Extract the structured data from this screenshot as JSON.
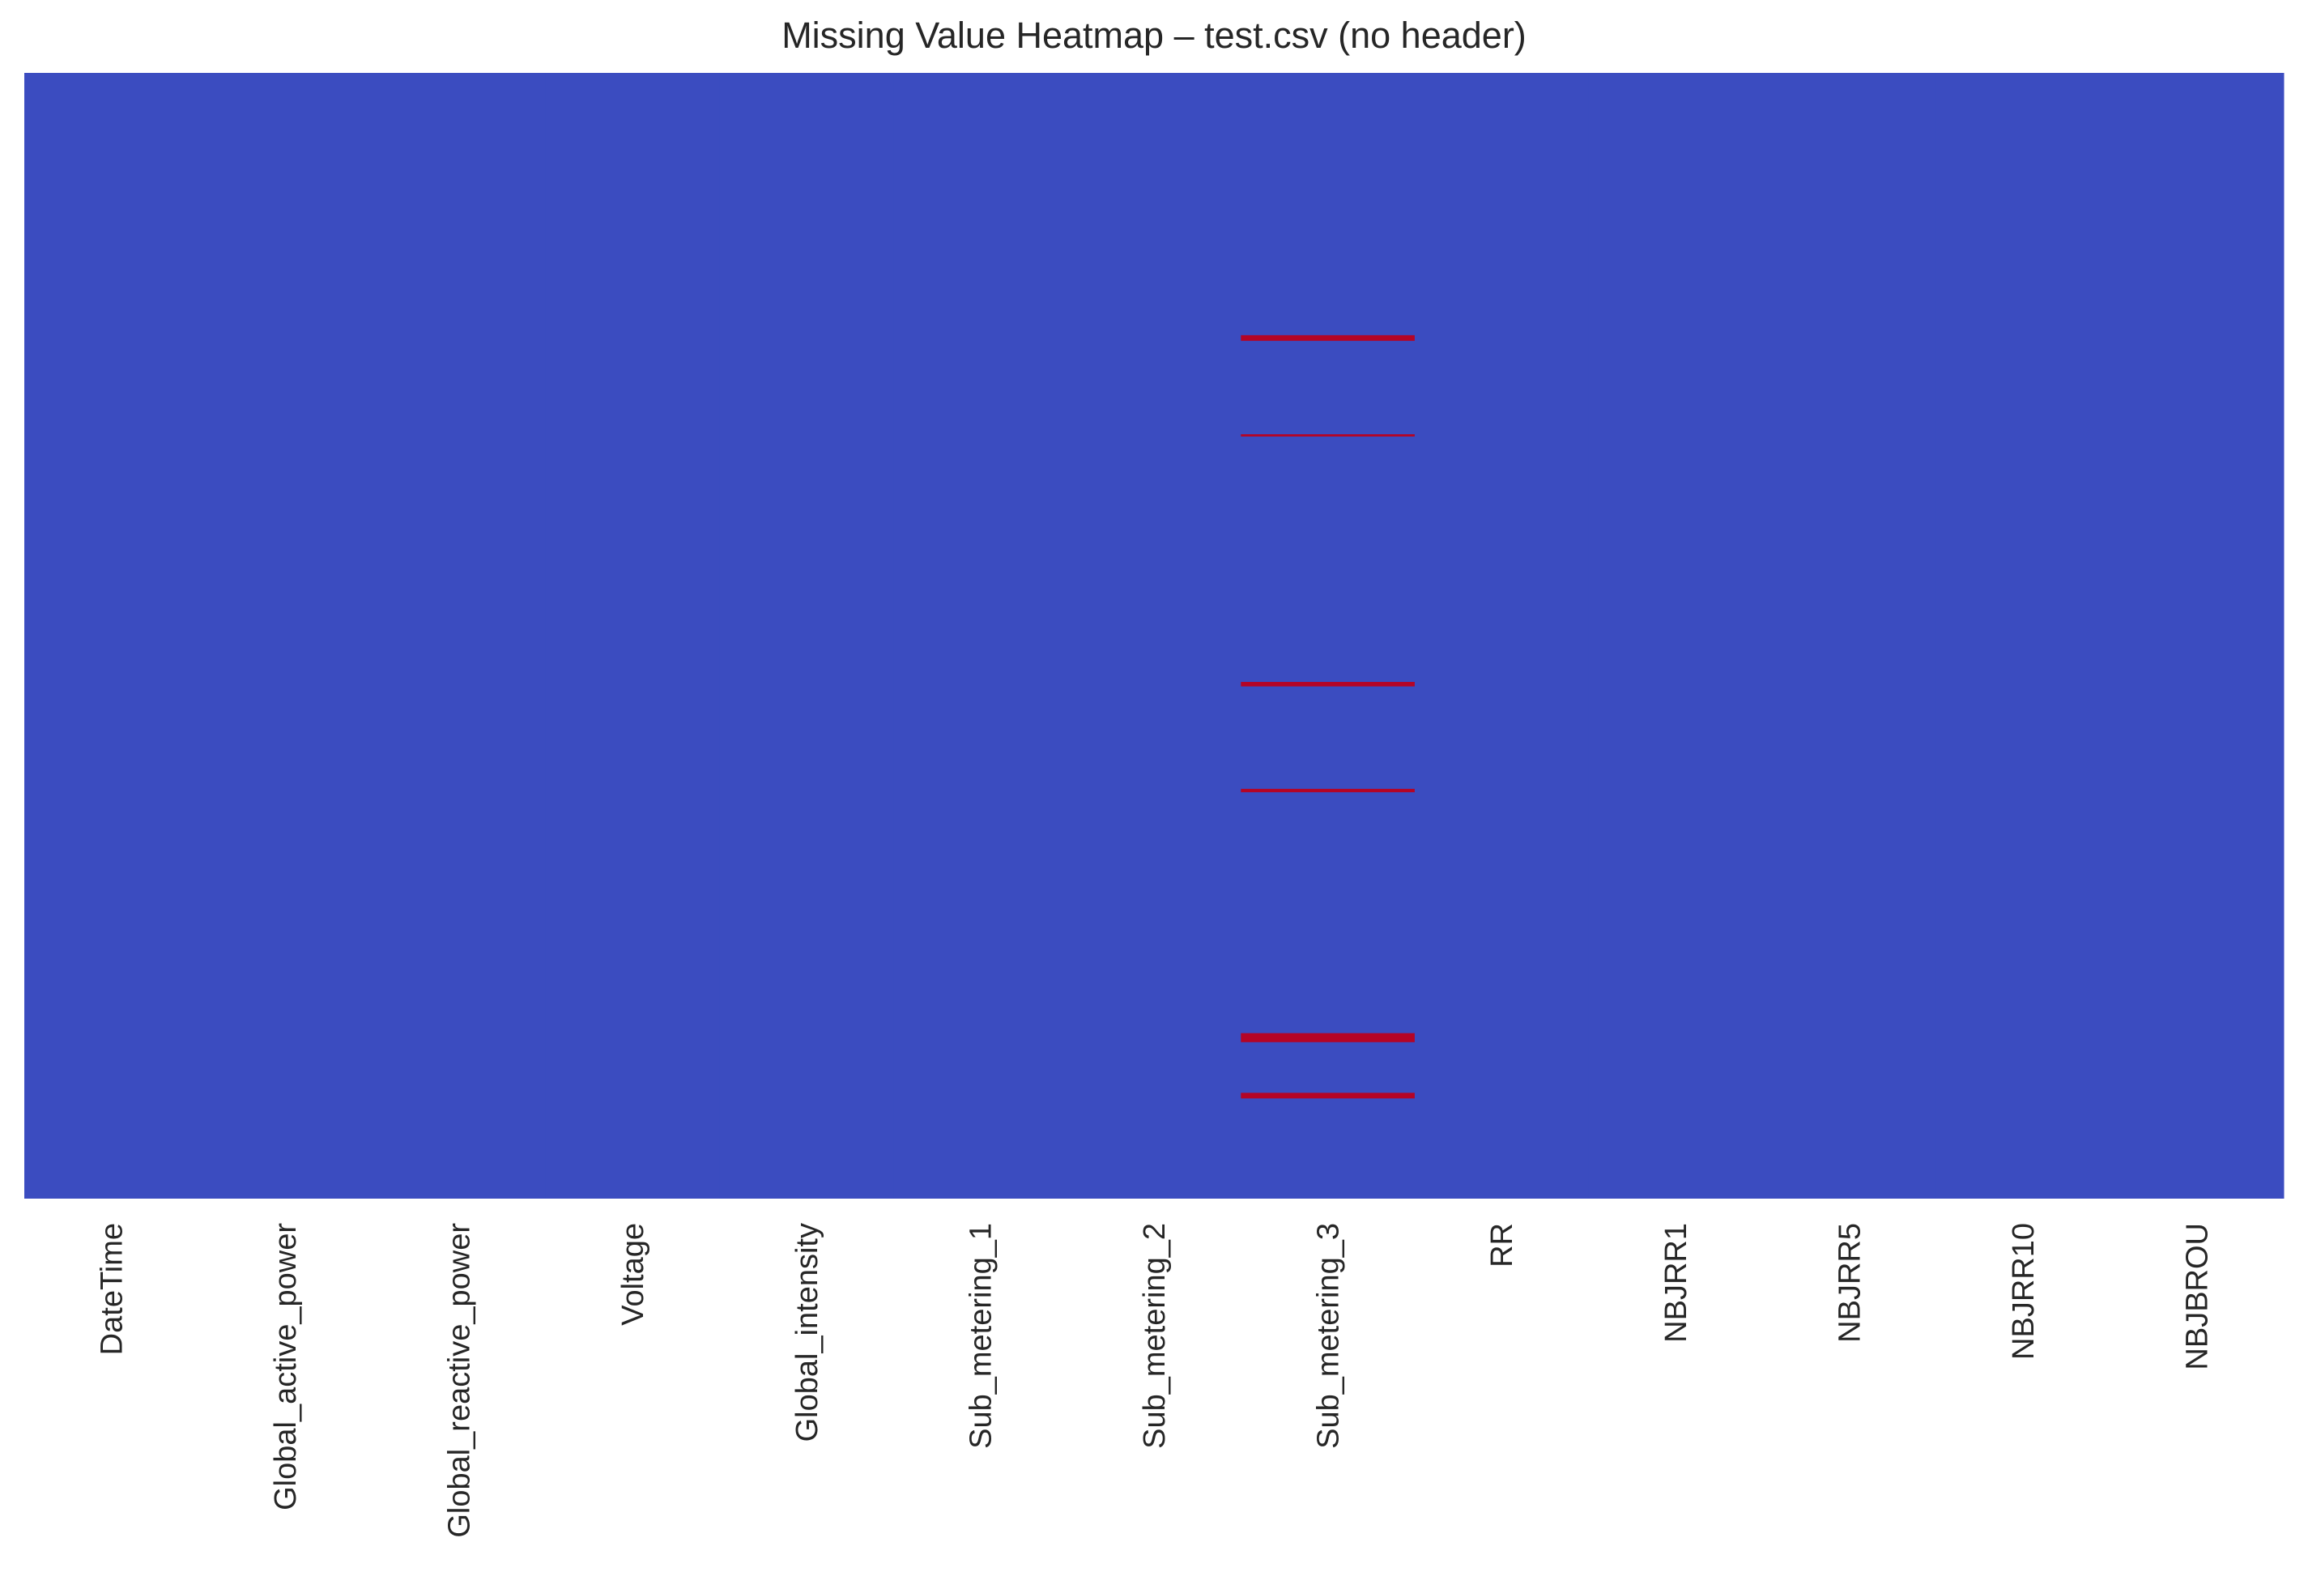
{
  "chart_data": {
    "type": "heatmap",
    "title": "Missing Value Heatmap – test.csv (no header)",
    "xlabel": "",
    "ylabel": "",
    "columns": [
      "DateTime",
      "Global_active_power",
      "Global_reactive_power",
      "Voltage",
      "Global_intensity",
      "Sub_metering_1",
      "Sub_metering_2",
      "Sub_metering_3",
      "RR",
      "NBJRR1",
      "NBJRR5",
      "NBJRR10",
      "NBJBROU"
    ],
    "row_range": [
      0,
      1
    ],
    "colors": {
      "present": "#3b4cc0",
      "missing": "#b40426"
    },
    "missing": [
      {
        "column": "Sub_metering_3",
        "row_start": 0.233,
        "row_end": 0.238
      },
      {
        "column": "Sub_metering_3",
        "row_start": 0.321,
        "row_end": 0.323
      },
      {
        "column": "Sub_metering_3",
        "row_start": 0.541,
        "row_end": 0.545
      },
      {
        "column": "Sub_metering_3",
        "row_start": 0.636,
        "row_end": 0.639
      },
      {
        "column": "Sub_metering_3",
        "row_start": 0.853,
        "row_end": 0.861
      },
      {
        "column": "Sub_metering_3",
        "row_start": 0.906,
        "row_end": 0.911
      }
    ],
    "legend": "none",
    "grid": false
  }
}
